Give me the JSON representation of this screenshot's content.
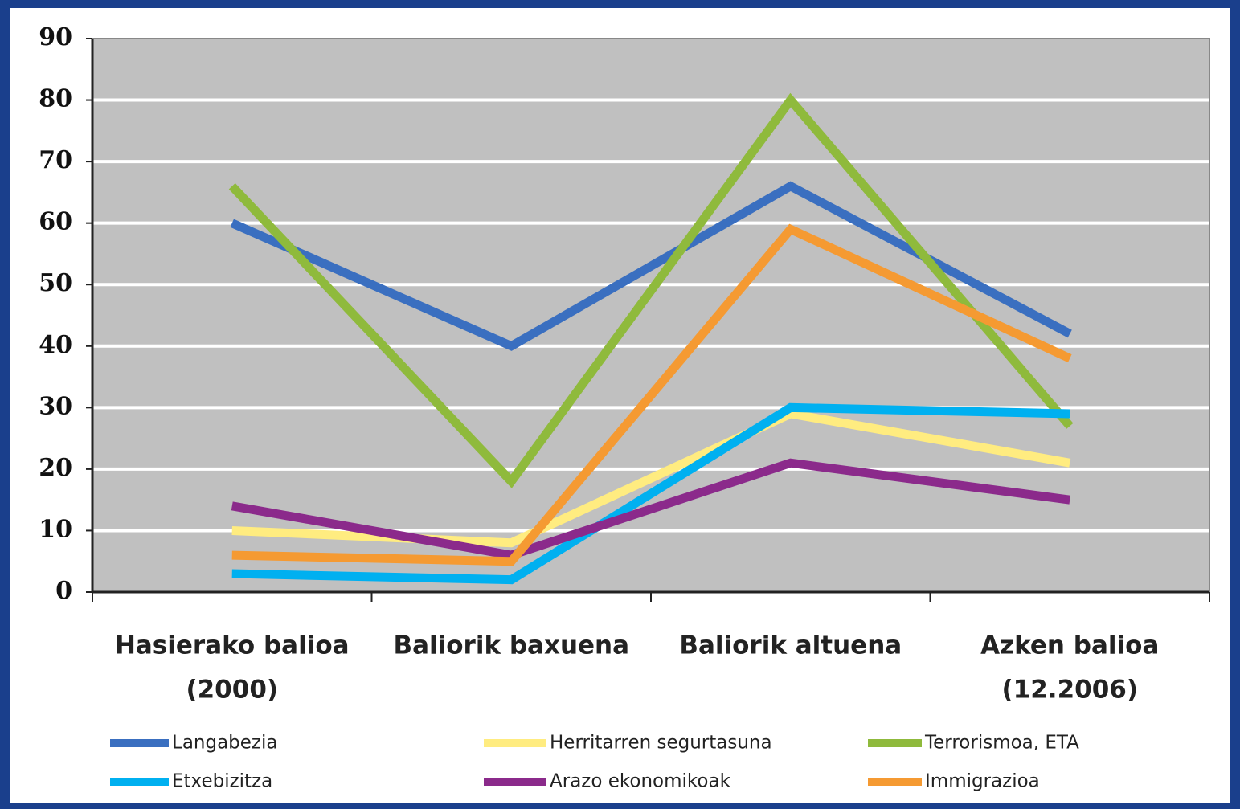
{
  "chart_data": {
    "type": "line",
    "categories": [
      [
        "Hasierako balioa",
        "(2000)"
      ],
      [
        "Baliorik baxuena"
      ],
      [
        "Baliorik altuena"
      ],
      [
        "Azken balioa",
        "(12.2006)"
      ]
    ],
    "series": [
      {
        "name": "Langabezia",
        "color": "#3a6fc0",
        "values": [
          60,
          40,
          66,
          42
        ]
      },
      {
        "name": "Herritarren segurtasuna",
        "color": "#ffec80",
        "values": [
          10,
          8,
          29,
          21
        ]
      },
      {
        "name": "Terrorismoa, ETA",
        "color": "#8fba3c",
        "values": [
          66,
          18,
          80,
          27
        ]
      },
      {
        "name": "Etxebizitza",
        "color": "#00b0f0",
        "values": [
          3,
          2,
          30,
          29
        ]
      },
      {
        "name": "Arazo ekonomikoak",
        "color": "#8b2a8b",
        "values": [
          14,
          6,
          21,
          15
        ]
      },
      {
        "name": "Immigrazioa",
        "color": "#f59a32",
        "values": [
          6,
          5,
          59,
          38
        ]
      }
    ],
    "ylim": [
      0,
      90
    ],
    "yticks": [
      0,
      10,
      20,
      30,
      40,
      50,
      60,
      70,
      80,
      90
    ],
    "grid": true
  }
}
